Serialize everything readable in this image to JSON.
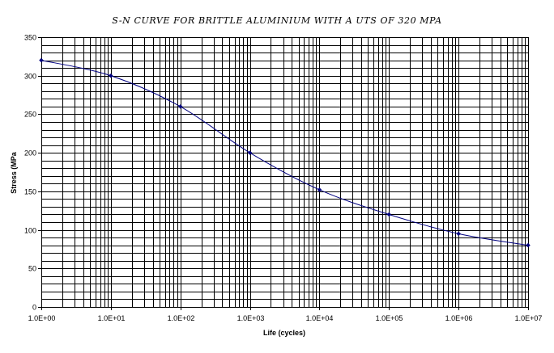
{
  "chart_data": {
    "type": "line",
    "title": "S-N CURVE FOR BRITTLE ALUMINIUM WITH A UTS OF 320 MPA",
    "xlabel": "Life (cycles)",
    "ylabel": "Stress (MPa",
    "x_scale": "log",
    "xlim": [
      1,
      10000000
    ],
    "ylim": [
      0,
      350
    ],
    "x_tick_labels": [
      "1.0E+00",
      "1.0E+01",
      "1.0E+02",
      "1.0E+03",
      "1.0E+04",
      "1.0E+05",
      "1.0E+06",
      "1.0E+07"
    ],
    "y_tick_labels": [
      "0",
      "50",
      "100",
      "150",
      "200",
      "250",
      "300",
      "350"
    ],
    "grid": true,
    "legend": "none",
    "series": [
      {
        "color": "#000080",
        "marker": "diamond",
        "x": [
          1,
          10,
          100,
          1000,
          10000,
          100000,
          1000000,
          10000000
        ],
        "y": [
          320,
          300,
          260,
          200,
          152,
          120,
          95,
          80
        ]
      }
    ]
  }
}
